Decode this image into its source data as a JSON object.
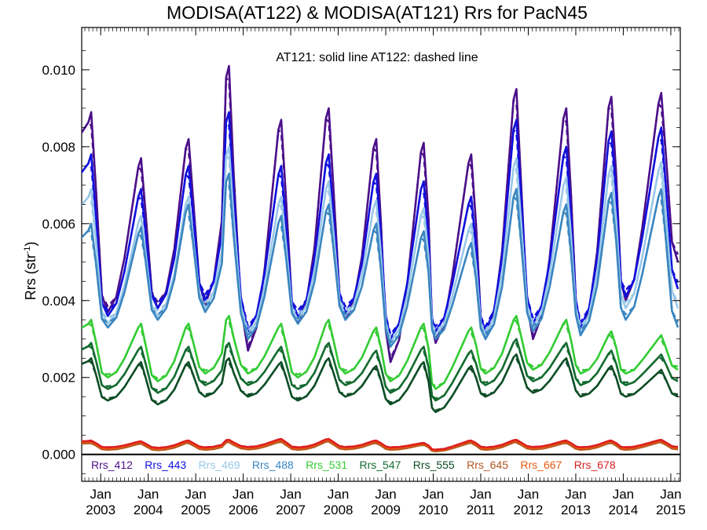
{
  "chart_data": {
    "type": "line",
    "title": "MODISA(AT122) & MODISA(AT121)  Rrs for PacN45",
    "annotation": "AT121: solid line   AT122: dashed line",
    "ylabel": "Rrs (str",
    "ylabel_sup": "-1",
    "ylabel_end": ")",
    "xlabel": "",
    "xlim": [
      2002.6,
      2015.2
    ],
    "ylim": [
      -0.0007,
      0.0111
    ],
    "zero_line": true,
    "grid": false,
    "yticks": [
      "0.000",
      "0.002",
      "0.004",
      "0.006",
      "0.008",
      "0.010"
    ],
    "ytick_values": [
      0,
      0.002,
      0.004,
      0.006,
      0.008,
      0.01
    ],
    "xticks": [
      {
        "month": "Jan",
        "year": "2003",
        "x": 2003.0
      },
      {
        "month": "Jan",
        "year": "2004",
        "x": 2004.0
      },
      {
        "month": "Jan",
        "year": "2005",
        "x": 2005.0
      },
      {
        "month": "Jan",
        "year": "2006",
        "x": 2006.0
      },
      {
        "month": "Jan",
        "year": "2007",
        "x": 2007.0
      },
      {
        "month": "Jan",
        "year": "2008",
        "x": 2008.0
      },
      {
        "month": "Jan",
        "year": "2009",
        "x": 2009.0
      },
      {
        "month": "Jan",
        "year": "2010",
        "x": 2010.0
      },
      {
        "month": "Jan",
        "year": "2011",
        "x": 2011.0
      },
      {
        "month": "Jan",
        "year": "2012",
        "x": 2012.0
      },
      {
        "month": "Jan",
        "year": "2013",
        "x": 2013.0
      },
      {
        "month": "Jan",
        "year": "2014",
        "x": 2014.0
      },
      {
        "month": "Jan",
        "year": "2015",
        "x": 2015.0
      }
    ],
    "legend_placement": "bottom-inside",
    "line_styles": {
      "AT121": "solid",
      "AT122": "dashed"
    },
    "series": [
      {
        "name": "Rrs_412",
        "color": "#4b0f8a",
        "peaks": [
          0.0089,
          0.0077,
          0.0082,
          0.0101,
          0.0087,
          0.009,
          0.0082,
          0.0081,
          0.0078,
          0.0095,
          0.009,
          0.0093,
          0.0094
        ],
        "troughs": [
          0.0037,
          0.0038,
          0.0039,
          0.0027,
          0.0034,
          0.0035,
          0.0024,
          0.0029,
          0.003,
          0.003,
          0.0031,
          0.004,
          0.005
        ]
      },
      {
        "name": "Rrs_443",
        "color": "#1010dd",
        "peaks": [
          0.0078,
          0.0069,
          0.0075,
          0.0089,
          0.0075,
          0.0078,
          0.0073,
          0.0071,
          0.0067,
          0.0087,
          0.008,
          0.0084,
          0.0085
        ],
        "troughs": [
          0.0036,
          0.0038,
          0.004,
          0.0032,
          0.0036,
          0.0037,
          0.003,
          0.0032,
          0.0032,
          0.0034,
          0.0033,
          0.0041,
          0.0043
        ]
      },
      {
        "name": "Rrs_469",
        "color": "#99c8e8",
        "peaks": [
          0.0069,
          0.0062,
          0.0067,
          0.008,
          0.0067,
          0.0071,
          0.0066,
          0.0064,
          0.006,
          0.0077,
          0.0072,
          0.0075,
          0.0076
        ],
        "troughs": [
          0.0034,
          0.0036,
          0.0038,
          0.0031,
          0.0035,
          0.0036,
          0.0029,
          0.0031,
          0.0031,
          0.0033,
          0.0032,
          0.0038,
          0.0038
        ]
      },
      {
        "name": "Rrs_488",
        "color": "#3a86c0",
        "peaks": [
          0.006,
          0.0059,
          0.0065,
          0.0073,
          0.0062,
          0.0065,
          0.006,
          0.0058,
          0.0055,
          0.0069,
          0.0065,
          0.0068,
          0.0069
        ],
        "troughs": [
          0.0033,
          0.0035,
          0.0037,
          0.003,
          0.0034,
          0.0035,
          0.0028,
          0.003,
          0.003,
          0.0032,
          0.0031,
          0.0035,
          0.0033
        ]
      },
      {
        "name": "Rrs_531",
        "color": "#33cc33",
        "peaks": [
          0.0035,
          0.0034,
          0.0034,
          0.0036,
          0.0034,
          0.0035,
          0.0033,
          0.0034,
          0.0033,
          0.0036,
          0.0035,
          0.0032,
          0.0031
        ],
        "troughs": [
          0.002,
          0.0019,
          0.0021,
          0.0021,
          0.002,
          0.0021,
          0.0019,
          0.0017,
          0.0021,
          0.0022,
          0.0021,
          0.0021,
          0.0022
        ]
      },
      {
        "name": "Rrs_547",
        "color": "#136b30",
        "peaks": [
          0.0029,
          0.0028,
          0.0028,
          0.0029,
          0.0028,
          0.0029,
          0.0027,
          0.0028,
          0.0027,
          0.003,
          0.0029,
          0.0027,
          0.0026
        ],
        "troughs": [
          0.0017,
          0.0016,
          0.0018,
          0.0018,
          0.0017,
          0.0018,
          0.0016,
          0.0014,
          0.0018,
          0.0019,
          0.0018,
          0.0018,
          0.0019
        ]
      },
      {
        "name": "Rrs_555",
        "color": "#0e4d26",
        "peaks": [
          0.0025,
          0.0024,
          0.0024,
          0.0025,
          0.0024,
          0.0025,
          0.0023,
          0.0024,
          0.0023,
          0.0026,
          0.0025,
          0.0023,
          0.0022
        ],
        "troughs": [
          0.0014,
          0.0013,
          0.0015,
          0.0015,
          0.0014,
          0.0015,
          0.0013,
          0.0011,
          0.0015,
          0.0016,
          0.0015,
          0.0015,
          0.0015
        ]
      },
      {
        "name": "Rrs_645",
        "color": "#b0561e",
        "peaks": [
          0.0003,
          0.00028,
          0.0003,
          0.00032,
          0.00033,
          0.00034,
          0.0003,
          0.00025,
          0.0003,
          0.00032,
          0.0003,
          0.0003,
          0.00032
        ],
        "troughs": [
          0.00012,
          0.00011,
          0.00012,
          0.00013,
          0.00012,
          0.00013,
          0.00012,
          8e-05,
          0.00012,
          0.00013,
          0.00012,
          0.00012,
          0.00013
        ]
      },
      {
        "name": "Rrs_667",
        "color": "#e85a10",
        "peaks": [
          0.00034,
          0.00032,
          0.00034,
          0.00036,
          0.00037,
          0.00038,
          0.00034,
          0.00028,
          0.00034,
          0.00036,
          0.00034,
          0.00034,
          0.00036
        ],
        "troughs": [
          0.00015,
          0.00014,
          0.00015,
          0.00016,
          0.00015,
          0.00016,
          0.00015,
          0.0001,
          0.00015,
          0.00016,
          0.00015,
          0.00015,
          0.00016
        ]
      },
      {
        "name": "Rrs_678",
        "color": "#dd2020",
        "peaks": [
          0.00036,
          0.00034,
          0.00036,
          0.00038,
          0.0004,
          0.0004,
          0.00036,
          0.0003,
          0.00036,
          0.00038,
          0.00036,
          0.00036,
          0.00038
        ],
        "troughs": [
          0.00018,
          0.00017,
          0.00018,
          0.00019,
          0.00018,
          0.00019,
          0.00018,
          0.00012,
          0.00018,
          0.00019,
          0.00018,
          0.00018,
          0.00019
        ]
      }
    ],
    "peak_x": [
      2002.8,
      2003.85,
      2004.85,
      2005.7,
      2006.8,
      2007.8,
      2008.8,
      2009.8,
      2010.8,
      2011.75,
      2012.8,
      2013.75,
      2014.8
    ],
    "trough_x": [
      2003.15,
      2004.2,
      2005.2,
      2006.1,
      2007.15,
      2008.15,
      2009.1,
      2010.05,
      2011.1,
      2012.1,
      2013.1,
      2014.05,
      2015.15
    ]
  }
}
